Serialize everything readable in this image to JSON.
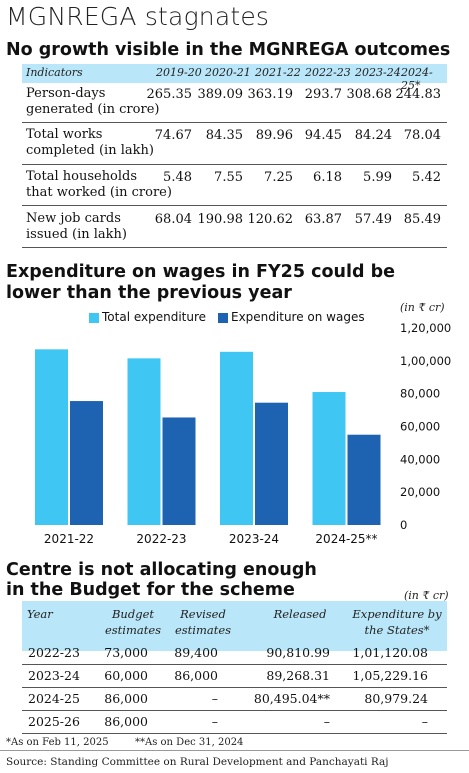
{
  "headline": "MGNREGA stagnates",
  "table1": {
    "title": "No growth visible in the MGNREGA outcomes",
    "header": [
      "Indicators",
      "2019-20",
      "2020-21",
      "2021-22",
      "2022-23",
      "2023-24",
      "2024-25*"
    ],
    "rows": [
      {
        "label_line1": "Person-days",
        "label_line2": "generated (in crore)",
        "values": [
          "265.35",
          "389.09",
          "363.19",
          "293.7",
          "308.68",
          "244.83"
        ]
      },
      {
        "label_line1": "Total works",
        "label_line2": "completed (in lakh)",
        "values": [
          "74.67",
          "84.35",
          "89.96",
          "94.45",
          "84.24",
          "78.04"
        ]
      },
      {
        "label_line1": "Total households",
        "label_line2": "that worked (in crore)",
        "values": [
          "5.48",
          "7.55",
          "7.25",
          "6.18",
          "5.99",
          "5.42"
        ]
      },
      {
        "label_line1": "New job cards",
        "label_line2": "issued (in lakh)",
        "values": [
          "68.04",
          "190.98",
          "120.62",
          "63.87",
          "57.49",
          "85.49"
        ]
      }
    ]
  },
  "chart_data": {
    "type": "bar",
    "title_line1": "Expenditure on wages in FY25 could be",
    "title_line2": "lower than the previous year",
    "unit": "(in ₹ cr)",
    "categories": [
      "2021-22",
      "2022-23",
      "2023-24",
      "2024-25**"
    ],
    "series": [
      {
        "name": "Total expenditure",
        "color": "#3fc6f3",
        "values": [
          107000,
          101500,
          105500,
          81000
        ]
      },
      {
        "name": "Expenditure on wages",
        "color": "#1e63b1",
        "values": [
          75500,
          65500,
          74500,
          55000
        ]
      }
    ],
    "ylim": [
      0,
      120000
    ],
    "yticks": [
      0,
      20000,
      40000,
      60000,
      80000,
      100000,
      120000
    ],
    "ytick_labels": [
      "0",
      "20,000",
      "40,000",
      "60,000",
      "80,000",
      "1,00,000",
      "1,20,000"
    ],
    "legend_position": "top",
    "grid": false
  },
  "table3": {
    "title_line1": "Centre is not allocating enough",
    "title_line2": "in the Budget for the scheme",
    "unit": "(in ₹ cr)",
    "header": {
      "year": "Year",
      "be_line1": "Budget",
      "be_line2": "estimates",
      "re_line1": "Revised",
      "re_line2": "estimates",
      "released": "Released",
      "exp_line1": "Expenditure by",
      "exp_line2": "the States*"
    },
    "rows": [
      {
        "year": "2022-23",
        "be": "73,000",
        "re": "89,400",
        "released": "90,810.99",
        "exp": "1,01,120.08"
      },
      {
        "year": "2023-24",
        "be": "60,000",
        "re": "86,000",
        "released": "89,268.31",
        "exp": "1,05,229.16"
      },
      {
        "year": "2024-25",
        "be": "86,000",
        "re": "–",
        "released": "80,495.04**",
        "exp": "80,979.24"
      },
      {
        "year": "2025-26",
        "be": "86,000",
        "re": "–",
        "released": "–",
        "exp": "–"
      }
    ]
  },
  "footnotes": {
    "note1": "*As on Feb 11, 2025",
    "note2": "**As on Dec 31, 2024",
    "source": "Source: Standing Committee on Rural Development and Panchayati Raj"
  }
}
